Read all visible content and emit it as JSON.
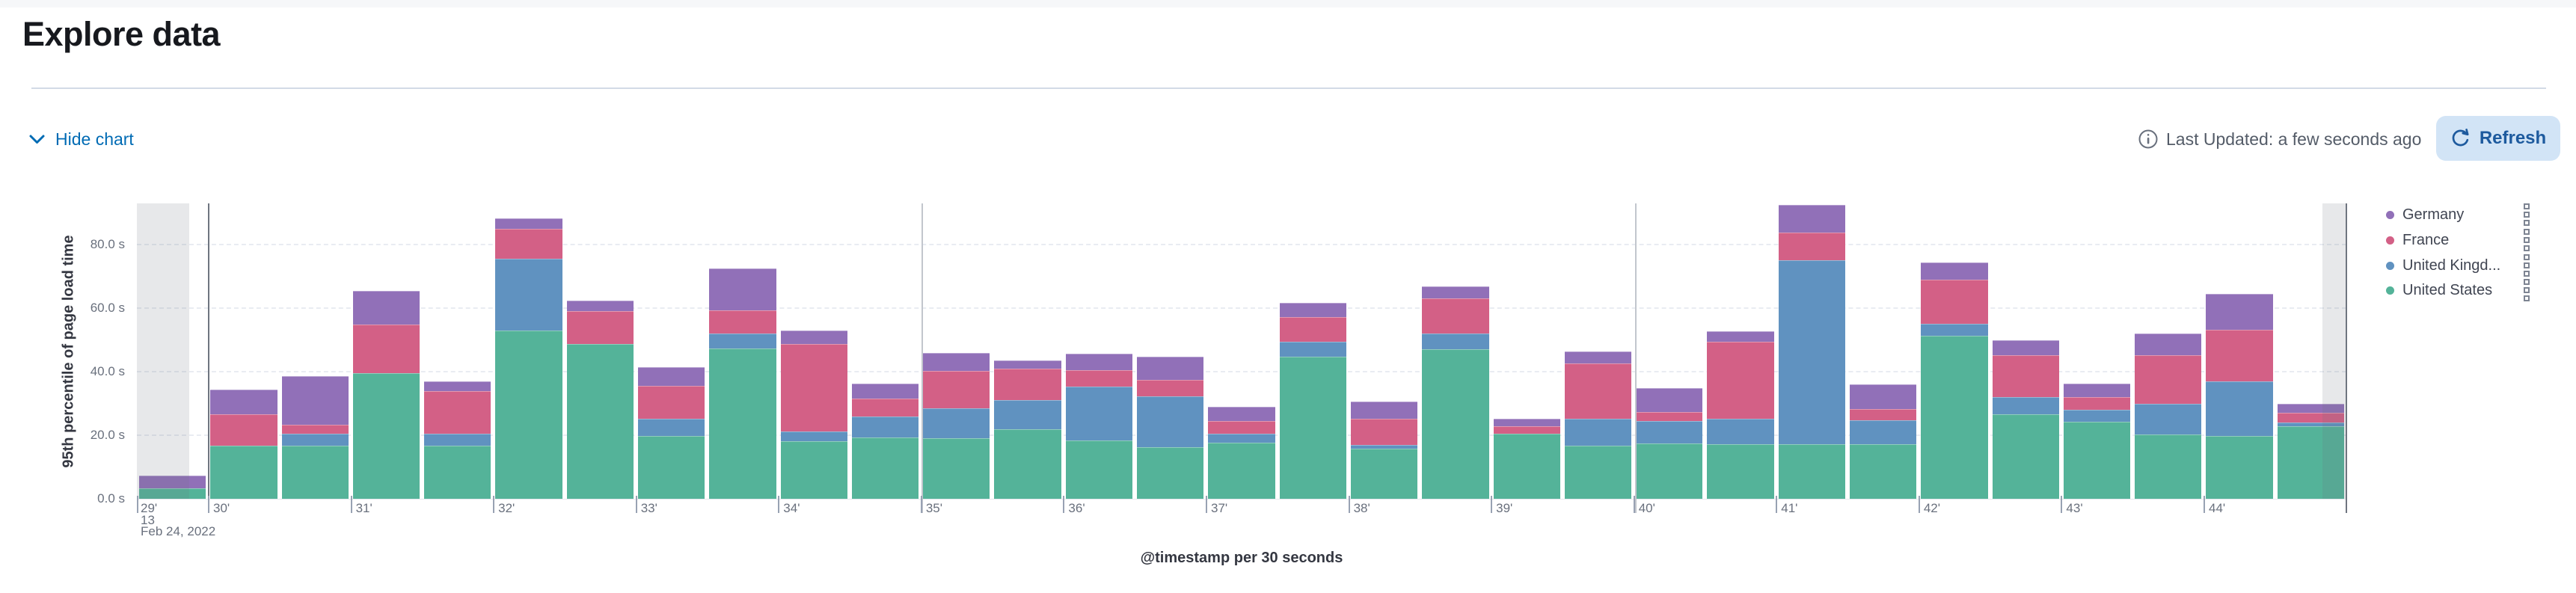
{
  "header": {
    "title": "Explore data"
  },
  "toolbar": {
    "hide_chart_label": "Hide chart",
    "last_updated": "Last Updated: a few seconds ago",
    "refresh_label": "Refresh"
  },
  "colors": {
    "link_blue": "#006BB4",
    "refresh_button_bg": "#d2e4f6",
    "refresh_button_text": "#1d5a9e",
    "axis_label_gray": "#69707D",
    "axis_title_gray": "#343741",
    "divider": "#d3dae6",
    "partial_bucket_band": "rgba(105,112,125,0.16)"
  },
  "chart_data": {
    "type": "bar",
    "stacked": true,
    "title": "",
    "xlabel": "@timestamp per 30 seconds",
    "ylabel": "95th percentile of page load time",
    "unit": "seconds",
    "ylim": [
      0,
      93
    ],
    "grid": "horizontal dashed",
    "legend_position": "right",
    "y_tick_values": [
      0,
      20,
      40,
      60,
      80
    ],
    "y_tick_labels": [
      "0.0 s",
      "20.0 s",
      "40.0 s",
      "60.0 s",
      "80.0 s"
    ],
    "x_first_tick_lines": [
      "29'",
      "13",
      "Feb 24, 2022"
    ],
    "x_minute_tick_labels": [
      "30'",
      "31'",
      "32'",
      "33'",
      "34'",
      "35'",
      "36'",
      "37'",
      "38'",
      "39'",
      "40'",
      "41'",
      "42'",
      "43'",
      "44'"
    ],
    "annotation_vlines_at": [
      "30'",
      "35'",
      "40'",
      "domain-end"
    ],
    "partial_bucket_markers": [
      "domain-start",
      "domain-end"
    ],
    "x": [
      "29:13",
      "30:00",
      "30:30",
      "31:00",
      "31:30",
      "32:00",
      "32:30",
      "33:00",
      "33:30",
      "34:00",
      "34:30",
      "35:00",
      "35:30",
      "36:00",
      "36:30",
      "37:00",
      "37:30",
      "38:00",
      "38:30",
      "39:00",
      "39:30",
      "40:00",
      "40:30",
      "41:00",
      "41:30",
      "42:00",
      "42:30",
      "43:00",
      "43:30",
      "44:00",
      "44:30"
    ],
    "series": [
      {
        "name": "United States",
        "legend_label": "United States",
        "color": "#54B399",
        "values": [
          3.3,
          16.6,
          16.8,
          39.5,
          16.7,
          52.9,
          48.8,
          19.8,
          47.3,
          18.1,
          19.4,
          19.0,
          21.8,
          18.4,
          16.3,
          17.6,
          44.8,
          15.7,
          47.0,
          20.4,
          16.8,
          17.5,
          17.1,
          17.2,
          17.1,
          51.3,
          26.5,
          24.3,
          20.2,
          19.8,
          22.9
        ]
      },
      {
        "name": "United Kingdom",
        "legend_label": "United Kingd...",
        "color": "#6092C0",
        "values": [
          0,
          0,
          3.7,
          0,
          3.8,
          22.6,
          0,
          5.3,
          4.7,
          3.1,
          6.6,
          9.4,
          9.2,
          17.0,
          15.9,
          2.8,
          4.7,
          1.3,
          5.0,
          0,
          8.3,
          6.9,
          8.1,
          57.9,
          7.6,
          3.9,
          5.5,
          3.7,
          9.6,
          17.1,
          1.2
        ]
      },
      {
        "name": "France",
        "legend_label": "France",
        "color": "#D36086",
        "values": [
          0,
          10.1,
          2.7,
          15.3,
          13.5,
          9.5,
          10.2,
          10.5,
          7.3,
          27.5,
          5.6,
          11.9,
          9.9,
          5.1,
          5.3,
          4.2,
          7.6,
          8.1,
          11.0,
          2.5,
          17.5,
          2.9,
          24.3,
          8.8,
          3.6,
          13.9,
          13.1,
          4.1,
          15.3,
          16.4,
          2.9
        ]
      },
      {
        "name": "Germany",
        "legend_label": "Germany",
        "color": "#9170B8",
        "values": [
          3.9,
          7.7,
          15.5,
          10.7,
          3.0,
          3.3,
          3.3,
          5.9,
          13.1,
          4.3,
          4.7,
          5.7,
          2.7,
          5.1,
          7.3,
          4.4,
          4.6,
          5.4,
          3.8,
          2.2,
          3.8,
          7.6,
          3.3,
          8.6,
          7.8,
          5.2,
          4.7,
          4.1,
          7.0,
          11.1,
          2.9
        ]
      }
    ],
    "legend": [
      {
        "label": "Germany",
        "color": "#9170B8"
      },
      {
        "label": "France",
        "color": "#D36086"
      },
      {
        "label": "United Kingd...",
        "color": "#6092C0"
      },
      {
        "label": "United States",
        "color": "#54B399"
      }
    ]
  }
}
